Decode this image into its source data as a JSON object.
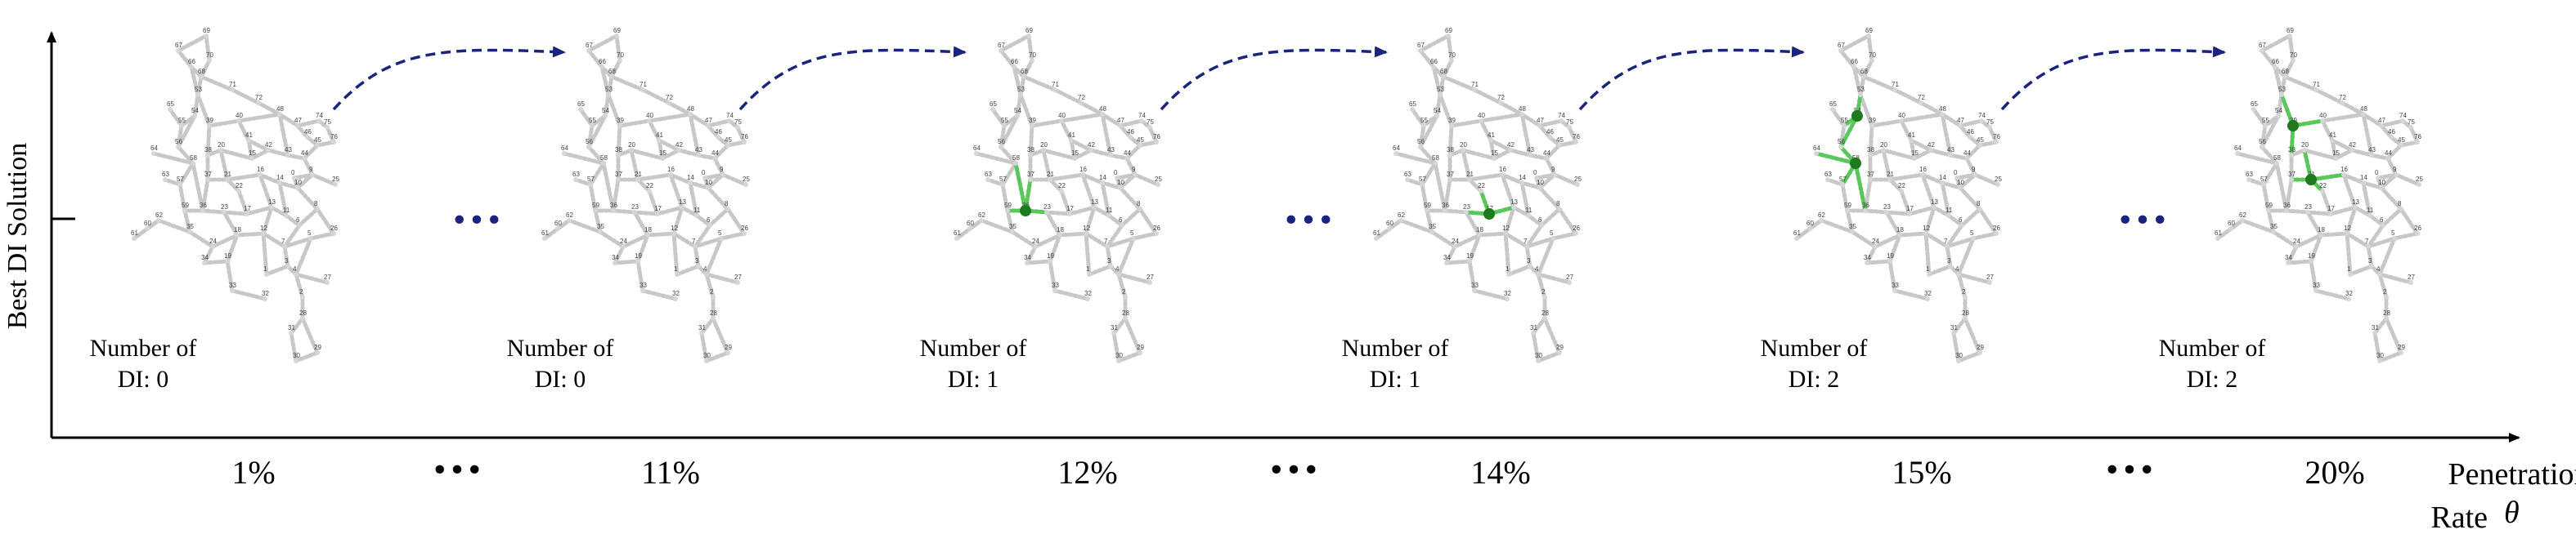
{
  "axes": {
    "y_label": "Best DI Solution",
    "x_label_line1": "Penetration",
    "x_label_line2": "Rate",
    "x_symbol": "θ"
  },
  "panels": [
    {
      "tick": "1%",
      "di_line1": "Number of",
      "di_line2": "DI: 0",
      "di_nodes": []
    },
    {
      "tick": "11%",
      "di_line1": "Number of",
      "di_line2": "DI: 0",
      "di_nodes": []
    },
    {
      "tick": "12%",
      "di_line1": "Number of",
      "di_line2": "DI: 1",
      "di_nodes": [
        "36"
      ]
    },
    {
      "tick": "14%",
      "di_line1": "Number of",
      "di_line2": "DI: 1",
      "di_nodes": [
        "17"
      ]
    },
    {
      "tick": "15%",
      "di_line1": "Number of",
      "di_line2": "DI: 2",
      "di_nodes": [
        "54",
        "58"
      ]
    },
    {
      "tick": "20%",
      "di_line1": "Number of",
      "di_line2": "DI: 2",
      "di_nodes": [
        "39",
        "21"
      ]
    }
  ],
  "ellipsis_between": [
    "1-2",
    "3-4",
    "5-6"
  ],
  "ellipsis_symbol": "•••",
  "colors": {
    "network_links": "#c8c8c8",
    "network_nodes": "#d6d6d6",
    "di_node": "#1e7a1e",
    "di_highlight": "#59c759",
    "arrow": "#1a237e",
    "ellipsis": "#1a237e"
  }
}
